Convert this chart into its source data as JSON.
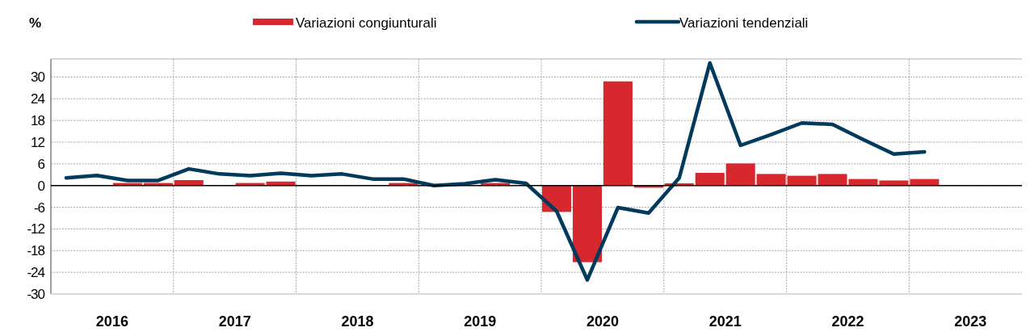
{
  "chart_data": {
    "type": "bar",
    "ylabel": "%",
    "legend": "top",
    "grid": true,
    "x": [
      2016.125,
      2016.375,
      2016.625,
      2016.875,
      2017.125,
      2017.375,
      2017.625,
      2017.875,
      2018.125,
      2018.375,
      2018.625,
      2018.875,
      2019.125,
      2019.375,
      2019.625,
      2019.875,
      2020.125,
      2020.375,
      2020.625,
      2020.875,
      2021.125,
      2021.375,
      2021.625,
      2021.875,
      2022.125,
      2022.375,
      2022.625,
      2022.875,
      2023.125
    ],
    "series": [
      {
        "name": "Variazioni congiunturali",
        "color": "#d7282f",
        "values": [
          0,
          0,
          0.7,
          0.7,
          1.5,
          0,
          0.7,
          1.1,
          0,
          0,
          0,
          0.7,
          0,
          0,
          0.7,
          0,
          -7.3,
          -21.2,
          28.8,
          -0.6,
          0.6,
          3.5,
          6.1,
          3.2,
          2.7,
          3.2,
          1.8,
          1.4,
          1.8
        ]
      },
      {
        "name": "Variazioni tendenziali",
        "type": "line",
        "color": "#003a5c",
        "values": [
          2.1,
          2.8,
          1.4,
          1.4,
          4.6,
          3.2,
          2.7,
          3.4,
          2.7,
          3.2,
          1.8,
          1.8,
          0,
          0.5,
          1.6,
          0.6,
          -7.1,
          -26.1,
          -6.1,
          -7.6,
          2.1,
          33.9,
          11.1,
          14.1,
          17.3,
          16.9,
          12.7,
          8.7,
          9.3
        ]
      }
    ],
    "xlim": [
      2016,
      2023.92
    ],
    "xticks": [
      {
        "value": 2016.5,
        "label": "2016"
      },
      {
        "value": 2017,
        "label": null
      },
      {
        "value": 2017.5,
        "label": "2017"
      },
      {
        "value": 2018,
        "label": null
      },
      {
        "value": 2018.5,
        "label": "2018"
      },
      {
        "value": 2019,
        "label": null
      },
      {
        "value": 2019.5,
        "label": "2019"
      },
      {
        "value": 2020,
        "label": null
      },
      {
        "value": 2020.5,
        "label": "2020"
      },
      {
        "value": 2021,
        "label": null
      },
      {
        "value": 2021.5,
        "label": "2021"
      },
      {
        "value": 2022,
        "label": null
      },
      {
        "value": 2022.5,
        "label": "2022"
      },
      {
        "value": 2023,
        "label": null
      },
      {
        "value": 2023.5,
        "label": "2023"
      }
    ],
    "ylim": [
      -30,
      35
    ],
    "yticks": [
      -30,
      -24,
      -18,
      -12,
      -6,
      0,
      6,
      12,
      18,
      24,
      30
    ]
  }
}
